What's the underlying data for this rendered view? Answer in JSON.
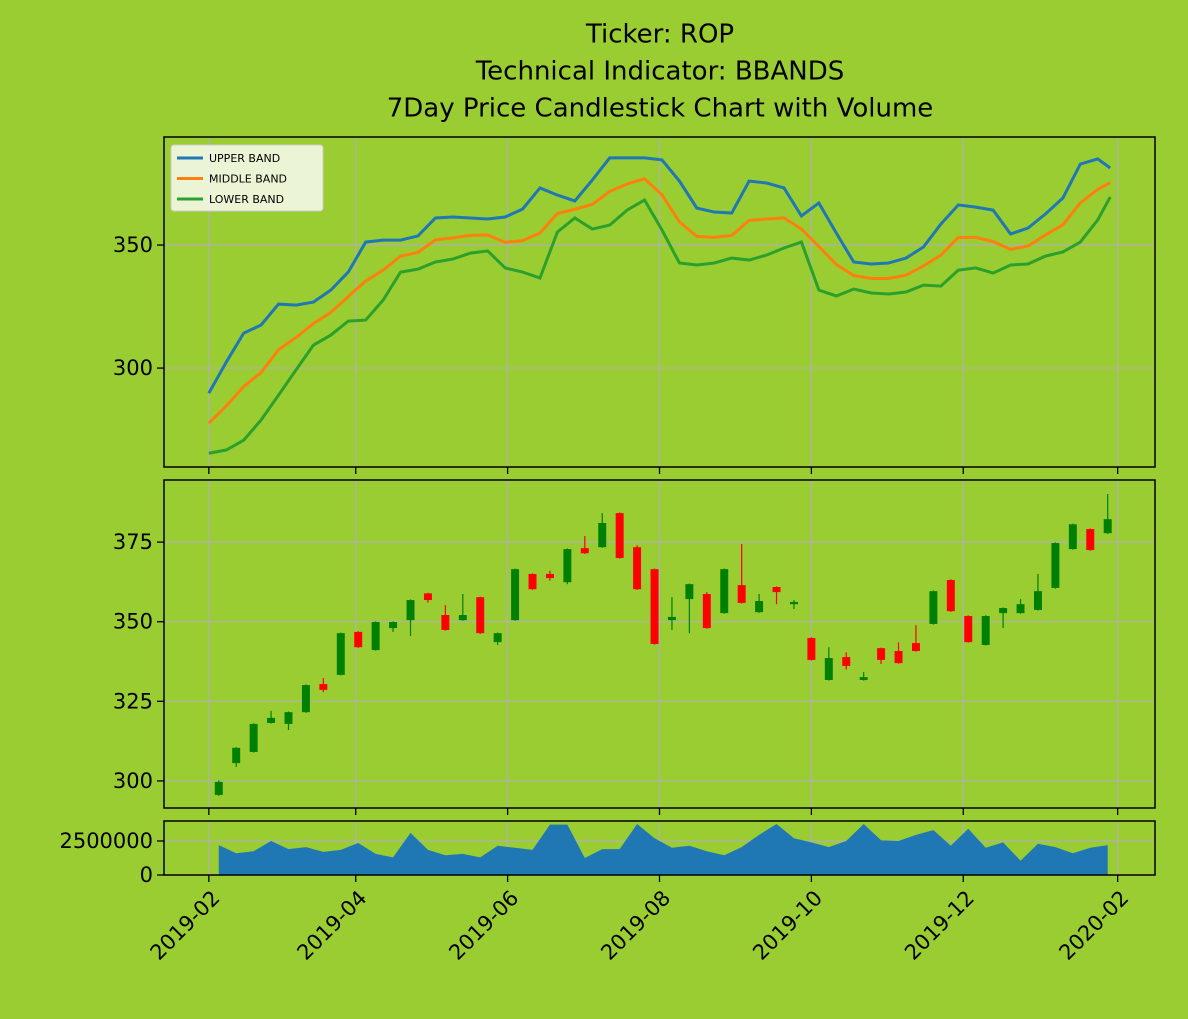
{
  "chart_data": [
    {
      "type": "line",
      "title": [
        "Ticker: ROP",
        "Technical Indicator: BBANDS",
        "7Day Price Candlestick Chart with Volume"
      ],
      "x": [
        17928,
        17935,
        17942,
        17949,
        17956,
        17963,
        17970,
        17977,
        17984,
        17991,
        17998,
        18005,
        18012,
        18019,
        18026,
        18033,
        18040,
        18047,
        18054,
        18061,
        18068,
        18075,
        18082,
        18089,
        18096,
        18103,
        18110,
        18117,
        18124,
        18131,
        18138,
        18145,
        18152,
        18159,
        18166,
        18173,
        18180,
        18187,
        18194,
        18201,
        18208,
        18215,
        18222,
        18229,
        18236,
        18243,
        18250,
        18257,
        18264,
        18271,
        18278,
        18285,
        18290
      ],
      "series": [
        {
          "name": "UPPER BAND",
          "color": "#1f77b4",
          "values": [
            289.8,
            302.4,
            314.2,
            317.5,
            326.0,
            325.6,
            326.8,
            331.7,
            339.0,
            351.2,
            352.0,
            352.0,
            353.7,
            361.0,
            361.4,
            361.0,
            360.6,
            361.4,
            364.6,
            373.2,
            370.3,
            367.9,
            376.4,
            385.4,
            385.4,
            385.4,
            384.6,
            376.0,
            365.0,
            363.4,
            363.0,
            376.0,
            375.2,
            373.2,
            361.8,
            367.1,
            354.9,
            343.1,
            342.3,
            342.7,
            344.7,
            349.2,
            358.5,
            366.3,
            365.4,
            364.2,
            354.5,
            356.9,
            362.6,
            369.1,
            382.9,
            385.0,
            381.3
          ]
        },
        {
          "name": "MIDDLE BAND",
          "color": "#ff7f0e",
          "values": [
            277.6,
            284.6,
            292.5,
            298.2,
            307.5,
            312.4,
            318.1,
            322.6,
            329.1,
            335.4,
            339.8,
            345.5,
            347.0,
            352.1,
            352.9,
            353.9,
            354.1,
            351.1,
            351.8,
            354.9,
            362.8,
            364.5,
            366.5,
            371.8,
            374.8,
            376.9,
            370.4,
            359.4,
            353.5,
            353.1,
            353.9,
            360.0,
            360.6,
            361.0,
            356.5,
            349.4,
            342.1,
            337.6,
            336.4,
            336.4,
            337.8,
            341.5,
            345.9,
            353.1,
            353.1,
            351.4,
            348.2,
            349.6,
            354.1,
            358.2,
            367.1,
            372.6,
            375.4
          ]
        },
        {
          "name": "LOWER BAND",
          "color": "#2ca02c",
          "values": [
            265.4,
            266.7,
            270.7,
            278.9,
            289.0,
            299.2,
            309.3,
            313.4,
            319.1,
            319.5,
            327.6,
            339.0,
            340.2,
            343.1,
            344.3,
            346.7,
            347.6,
            340.7,
            339.0,
            336.6,
            355.3,
            361.0,
            356.5,
            358.1,
            364.2,
            368.3,
            356.1,
            342.7,
            341.9,
            342.7,
            344.7,
            343.9,
            345.9,
            348.8,
            351.2,
            331.7,
            329.3,
            332.1,
            330.5,
            330.1,
            330.9,
            333.7,
            333.3,
            339.8,
            340.7,
            338.6,
            341.9,
            342.3,
            345.5,
            347.2,
            351.2,
            360.2,
            369.5
          ]
        }
      ],
      "xlim": [
        17910,
        18308
      ],
      "xticks": [
        17928,
        17987,
        18048,
        18109,
        18170,
        18231,
        18293
      ],
      "ylim": [
        259.8,
        393.9
      ],
      "yticks": [
        300,
        350
      ],
      "grid": true,
      "legend": "upper left"
    },
    {
      "type": "candlestick",
      "x": [
        17932,
        17939,
        17946,
        17953,
        17960,
        17967,
        17974,
        17981,
        17988,
        17995,
        18002,
        18009,
        18016,
        18023,
        18030,
        18037,
        18044,
        18051,
        18058,
        18065,
        18072,
        18079,
        18086,
        18093,
        18100,
        18107,
        18114,
        18121,
        18128,
        18135,
        18142,
        18149,
        18156,
        18163,
        18170,
        18177,
        18184,
        18191,
        18198,
        18205,
        18212,
        18219,
        18226,
        18233,
        18240,
        18247,
        18254,
        18261,
        18268,
        18275,
        18282,
        18289
      ],
      "open": [
        295.6,
        305.6,
        309.1,
        318.2,
        317.9,
        321.6,
        330.4,
        333.3,
        346.8,
        341.1,
        348.0,
        350.5,
        358.9,
        352.1,
        350.5,
        357.7,
        343.6,
        350.5,
        365.0,
        365.0,
        362.4,
        373.1,
        373.4,
        384.1,
        373.4,
        366.5,
        350.5,
        357.1,
        358.7,
        352.7,
        361.5,
        353.0,
        360.9,
        355.5,
        344.9,
        331.7,
        338.9,
        331.7,
        341.7,
        340.8,
        343.3,
        349.3,
        363.1,
        351.8,
        342.7,
        352.7,
        352.7,
        353.7,
        360.6,
        372.8,
        379.1,
        377.8
      ],
      "high": [
        300.2,
        310.6,
        318.1,
        322.0,
        321.8,
        330.3,
        332.3,
        346.6,
        347.0,
        350.1,
        350.1,
        357.0,
        359.1,
        355.2,
        358.7,
        357.9,
        346.6,
        366.7,
        365.2,
        366.0,
        373.0,
        376.9,
        384.1,
        384.3,
        374.0,
        366.7,
        357.7,
        362.0,
        359.3,
        366.7,
        374.4,
        358.7,
        361.1,
        356.8,
        345.1,
        342.0,
        340.4,
        334.2,
        341.9,
        343.5,
        348.9,
        359.8,
        363.3,
        352.0,
        352.0,
        354.5,
        357.1,
        365.0,
        374.9,
        380.8,
        379.3,
        390.1
      ],
      "low": [
        295.3,
        304.4,
        308.9,
        318.0,
        316.0,
        321.4,
        327.9,
        333.1,
        341.8,
        340.9,
        346.8,
        345.5,
        356.0,
        347.2,
        350.3,
        346.2,
        342.7,
        350.3,
        360.0,
        362.9,
        361.8,
        371.3,
        373.2,
        369.8,
        360.0,
        342.8,
        347.4,
        346.4,
        347.8,
        352.5,
        355.7,
        352.8,
        355.5,
        354.0,
        337.8,
        331.5,
        335.0,
        331.5,
        336.7,
        336.8,
        340.6,
        349.1,
        353.1,
        343.4,
        342.5,
        348.0,
        352.5,
        353.5,
        360.4,
        372.6,
        372.3,
        377.6
      ],
      "close": [
        299.7,
        310.4,
        317.9,
        319.8,
        321.6,
        330.1,
        328.6,
        346.4,
        342.0,
        349.9,
        349.9,
        356.8,
        356.8,
        347.4,
        352.1,
        346.4,
        346.4,
        366.5,
        360.2,
        363.7,
        372.8,
        371.5,
        381.0,
        370.0,
        360.2,
        343.0,
        351.5,
        361.8,
        348.0,
        366.5,
        355.9,
        356.5,
        359.3,
        356.2,
        338.0,
        338.6,
        336.1,
        332.6,
        338.0,
        337.0,
        340.8,
        359.6,
        353.3,
        343.6,
        351.8,
        354.3,
        355.5,
        359.6,
        374.7,
        380.6,
        372.5,
        382.2
      ],
      "up_color": "#008000",
      "down_color": "#ff0000",
      "xlim": [
        17910,
        18308
      ],
      "xticks": [
        17928,
        17987,
        18048,
        18109,
        18170,
        18231,
        18293
      ],
      "ylim": [
        291.5,
        394.5
      ],
      "yticks": [
        300,
        325,
        350,
        375
      ],
      "grid": true
    },
    {
      "type": "area",
      "x": [
        17932,
        17939,
        17946,
        17953,
        17960,
        17967,
        17974,
        17981,
        17988,
        17995,
        18002,
        18009,
        18016,
        18023,
        18030,
        18037,
        18044,
        18051,
        18058,
        18065,
        18072,
        18079,
        18086,
        18093,
        18100,
        18107,
        18114,
        18121,
        18128,
        18135,
        18142,
        18149,
        18156,
        18163,
        18170,
        18177,
        18184,
        18191,
        18198,
        18205,
        18212,
        18219,
        18226,
        18233,
        18240,
        18247,
        18254,
        18261,
        18268,
        18275,
        18282,
        18289
      ],
      "values": [
        2200000,
        1600000,
        1750000,
        2500000,
        1900000,
        2050000,
        1700000,
        1850000,
        2350000,
        1550000,
        1300000,
        3100000,
        1850000,
        1450000,
        1550000,
        1300000,
        2150000,
        2000000,
        1850000,
        3700000,
        3700000,
        1250000,
        1900000,
        1900000,
        3750000,
        2700000,
        2000000,
        2150000,
        1750000,
        1450000,
        2050000,
        2950000,
        3750000,
        2700000,
        2400000,
        2050000,
        2500000,
        3750000,
        2550000,
        2500000,
        2950000,
        3300000,
        2150000,
        3400000,
        2000000,
        2400000,
        1050000,
        2300000,
        2050000,
        1600000,
        2000000,
        2200000
      ],
      "color": "#1f77b4",
      "xlim": [
        17910,
        18308
      ],
      "xticks": [
        {
          "value": 17928,
          "label": "2019-02"
        },
        {
          "value": 17987,
          "label": "2019-04"
        },
        {
          "value": 18048,
          "label": "2019-06"
        },
        {
          "value": 18109,
          "label": "2019-08"
        },
        {
          "value": 18170,
          "label": "2019-10"
        },
        {
          "value": 18231,
          "label": "2019-12"
        },
        {
          "value": 18293,
          "label": "2020-02"
        }
      ],
      "ylim": [
        0,
        3970000
      ],
      "yticks": [
        0,
        2500000
      ],
      "grid": true
    }
  ]
}
